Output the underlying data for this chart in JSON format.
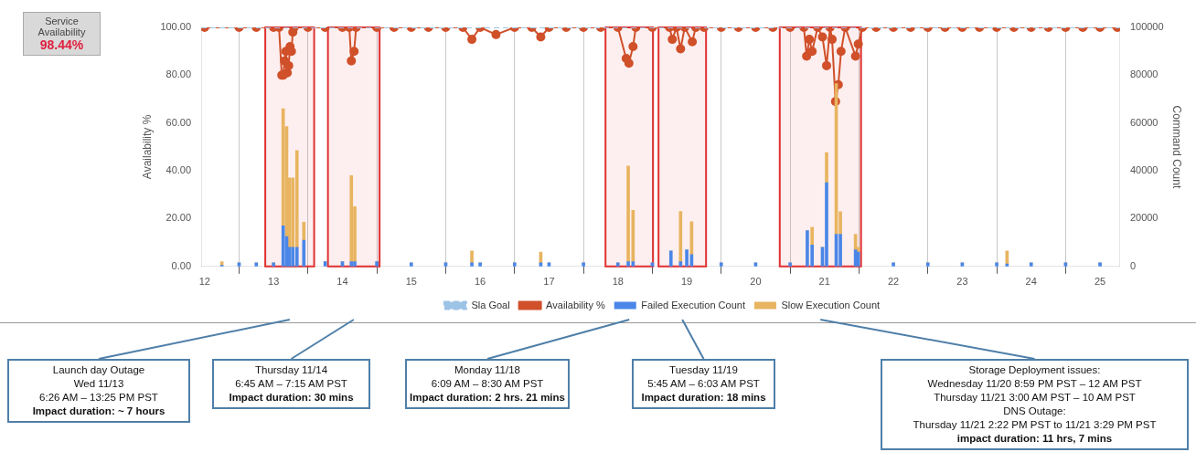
{
  "chart_data": {
    "type": "bar",
    "ylabel": "Availability %",
    "y2label": "Command Count",
    "x": [
      12.25,
      12.5,
      12.75,
      13.0,
      13.14,
      13.19,
      13.23,
      13.28,
      13.34,
      13.44,
      13.75,
      14.0,
      14.13,
      14.18,
      14.5,
      15.0,
      15.5,
      15.88,
      16.0,
      16.5,
      16.88,
      17.0,
      17.5,
      18.0,
      18.15,
      18.22,
      18.5,
      18.77,
      18.91,
      19.0,
      19.07,
      19.5,
      20.0,
      20.5,
      20.75,
      20.82,
      20.97,
      21.03,
      21.17,
      21.23,
      21.45,
      21.49,
      22.0,
      22.5,
      23.0,
      23.5,
      23.65,
      24.0,
      24.5,
      25.0
    ],
    "series": [
      {
        "name": "Sla Goal",
        "type": "line",
        "color": "#9dc3e6",
        "line_style": "dashed",
        "marker": "none",
        "x": [
          11.95,
          25.29
        ],
        "values": [
          100,
          100
        ]
      },
      {
        "name": "Availability %",
        "type": "line",
        "color": "#d0502a",
        "marker": "circle",
        "line_style": "solid",
        "x": [
          12.0,
          12.5,
          12.75,
          13.0,
          13.08,
          13.12,
          13.14,
          13.16,
          13.18,
          13.2,
          13.22,
          13.24,
          13.26,
          13.28,
          13.3,
          13.5,
          13.75,
          14.0,
          14.1,
          14.13,
          14.17,
          14.2,
          14.5,
          14.75,
          15.0,
          15.25,
          15.5,
          15.75,
          15.88,
          16.0,
          16.23,
          16.5,
          16.75,
          16.88,
          17.0,
          17.25,
          17.5,
          17.75,
          18.0,
          18.12,
          18.16,
          18.22,
          18.26,
          18.5,
          18.75,
          18.79,
          18.85,
          18.91,
          18.97,
          19.08,
          19.13,
          19.25,
          19.5,
          19.75,
          20.0,
          20.25,
          20.5,
          20.7,
          20.74,
          20.78,
          20.82,
          20.9,
          20.97,
          21.03,
          21.08,
          21.11,
          21.16,
          21.2,
          21.24,
          21.3,
          21.45,
          21.49,
          21.55,
          21.75,
          22.0,
          22.25,
          22.5,
          22.75,
          23.0,
          23.25,
          23.5,
          23.75,
          24.0,
          24.25,
          24.5,
          24.75,
          25.0,
          25.25
        ],
        "values": [
          100,
          100,
          100,
          100,
          100,
          80,
          80,
          86,
          90,
          81,
          84,
          92,
          90,
          98,
          100,
          100,
          100,
          100,
          100,
          86,
          90,
          100,
          100,
          100,
          100,
          100,
          100,
          100,
          95,
          100,
          97,
          100,
          100,
          96,
          100,
          100,
          100,
          100,
          100,
          87,
          85,
          92,
          100,
          100,
          100,
          95,
          100,
          91,
          100,
          94,
          100,
          100,
          100,
          100,
          100,
          100,
          100,
          100,
          88,
          95,
          90,
          100,
          96,
          84,
          100,
          95,
          69,
          76,
          90,
          100,
          88,
          93,
          100,
          100,
          100,
          100,
          100,
          100,
          100,
          100,
          100,
          100,
          100,
          100,
          100,
          100,
          100,
          100
        ]
      },
      {
        "name": "Failed Execution Count",
        "color": "#4a86e8",
        "axis": "y2",
        "values": [
          500,
          1500,
          1500,
          1500,
          17000,
          12500,
          8000,
          8000,
          8000,
          11000,
          2000,
          2000,
          2000,
          2000,
          2000,
          1500,
          1500,
          1500,
          1500,
          1500,
          1500,
          1500,
          1500,
          1500,
          2000,
          2000,
          1500,
          6500,
          2000,
          7000,
          5000,
          1500,
          1500,
          1500,
          15000,
          9000,
          8000,
          35000,
          13500,
          13500,
          7000,
          6000,
          1500,
          1500,
          1500,
          1500,
          1000,
          1500,
          1500,
          1500
        ]
      },
      {
        "name": "Slow Execution Count",
        "color": "#e8b460",
        "axis": "y2",
        "values": [
          1500,
          0,
          0,
          0,
          49000,
          46000,
          29000,
          29000,
          40500,
          7500,
          0,
          0,
          36000,
          23000,
          0,
          0,
          0,
          5000,
          0,
          0,
          4500,
          0,
          0,
          0,
          40000,
          21500,
          0,
          0,
          21000,
          0,
          13700,
          0,
          0,
          0,
          0,
          7400,
          0,
          12600,
          63000,
          9400,
          6500,
          2000,
          0,
          0,
          0,
          0,
          5500,
          0,
          0,
          0
        ]
      }
    ],
    "stacked": true,
    "xlim": [
      11.95,
      25.29
    ],
    "xticks": [
      12,
      13,
      14,
      15,
      16,
      17,
      18,
      19,
      20,
      21,
      22,
      23,
      24,
      25
    ],
    "ylim": [
      0,
      100
    ],
    "yticks": [
      {
        "value": 0,
        "label": "0.00"
      },
      {
        "value": 20,
        "label": "20.00"
      },
      {
        "value": 40,
        "label": "40.00"
      },
      {
        "value": 60,
        "label": "60.00"
      },
      {
        "value": 80,
        "label": "80.00"
      },
      {
        "value": 100,
        "label": "100.00"
      }
    ],
    "y2lim": [
      0,
      100000
    ],
    "y2ticks": [
      0,
      20000,
      40000,
      60000,
      80000,
      100000
    ],
    "grid": "x",
    "legend": "bottom",
    "bands": [
      {
        "axis": "x",
        "from": 12.88,
        "to": 13.59,
        "color": "#e03030"
      },
      {
        "axis": "x",
        "from": 13.79,
        "to": 14.54,
        "color": "#e03030"
      },
      {
        "axis": "x",
        "from": 17.82,
        "to": 18.51,
        "color": "#e03030"
      },
      {
        "axis": "x",
        "from": 18.59,
        "to": 19.28,
        "color": "#e03030"
      },
      {
        "axis": "x",
        "from": 20.35,
        "to": 21.53,
        "color": "#e03030"
      }
    ],
    "annotations": [
      "Service Availability",
      "98.44%",
      "Launch day Outage\nWed 11/13\n6:26 AM – 13:25 PM PST\nImpact duration:  ~ 7 hours",
      "Thursday 11/14\n6:45 AM – 7:15 AM PST\nImpact duration: 30 mins",
      "Monday 11/18\n6:09 AM – 8:30 AM PST\nImpact duration: 2 hrs. 21 mins",
      "Tuesday 11/19\n5:45 AM – 6:03 AM PST\nImpact duration: 18 mins",
      "Storage Deployment issues:\nWednesday 11/20 8:59 PM PST – 12 AM PST\nThursday 11/21 3:00 AM PST – 10 AM PST\nDNS Outage:\nThursday 11/21 2:22 PM PST to 11/21 3:29 PM PST\nimpact duration: 11 hrs, 7 mins"
    ]
  }
}
